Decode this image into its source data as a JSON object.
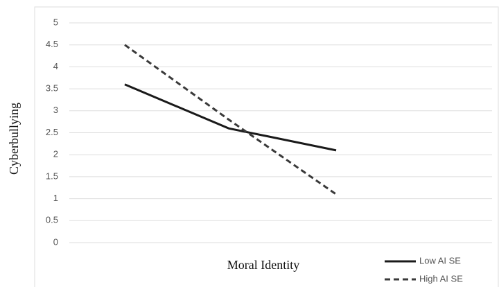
{
  "chart_data": {
    "type": "line",
    "y_label": "Cyberbullying",
    "x_label": "Moral Identity",
    "categories": [
      null,
      null,
      null
    ],
    "series": [
      {
        "name": "Low AI SE",
        "color": "#1a1a1a",
        "dash": false,
        "values": [
          3.6,
          2.6,
          2.1
        ]
      },
      {
        "name": "High AI SE",
        "color": "#3a3a3a",
        "dash": true,
        "values": [
          4.5,
          2.8,
          1.1
        ]
      }
    ],
    "ylim": [
      0,
      5
    ],
    "yticks": [
      0,
      0.5,
      1,
      1.5,
      2,
      2.5,
      3,
      3.5,
      4,
      4.5,
      5
    ],
    "grid": true,
    "legend": "bottom-right"
  }
}
